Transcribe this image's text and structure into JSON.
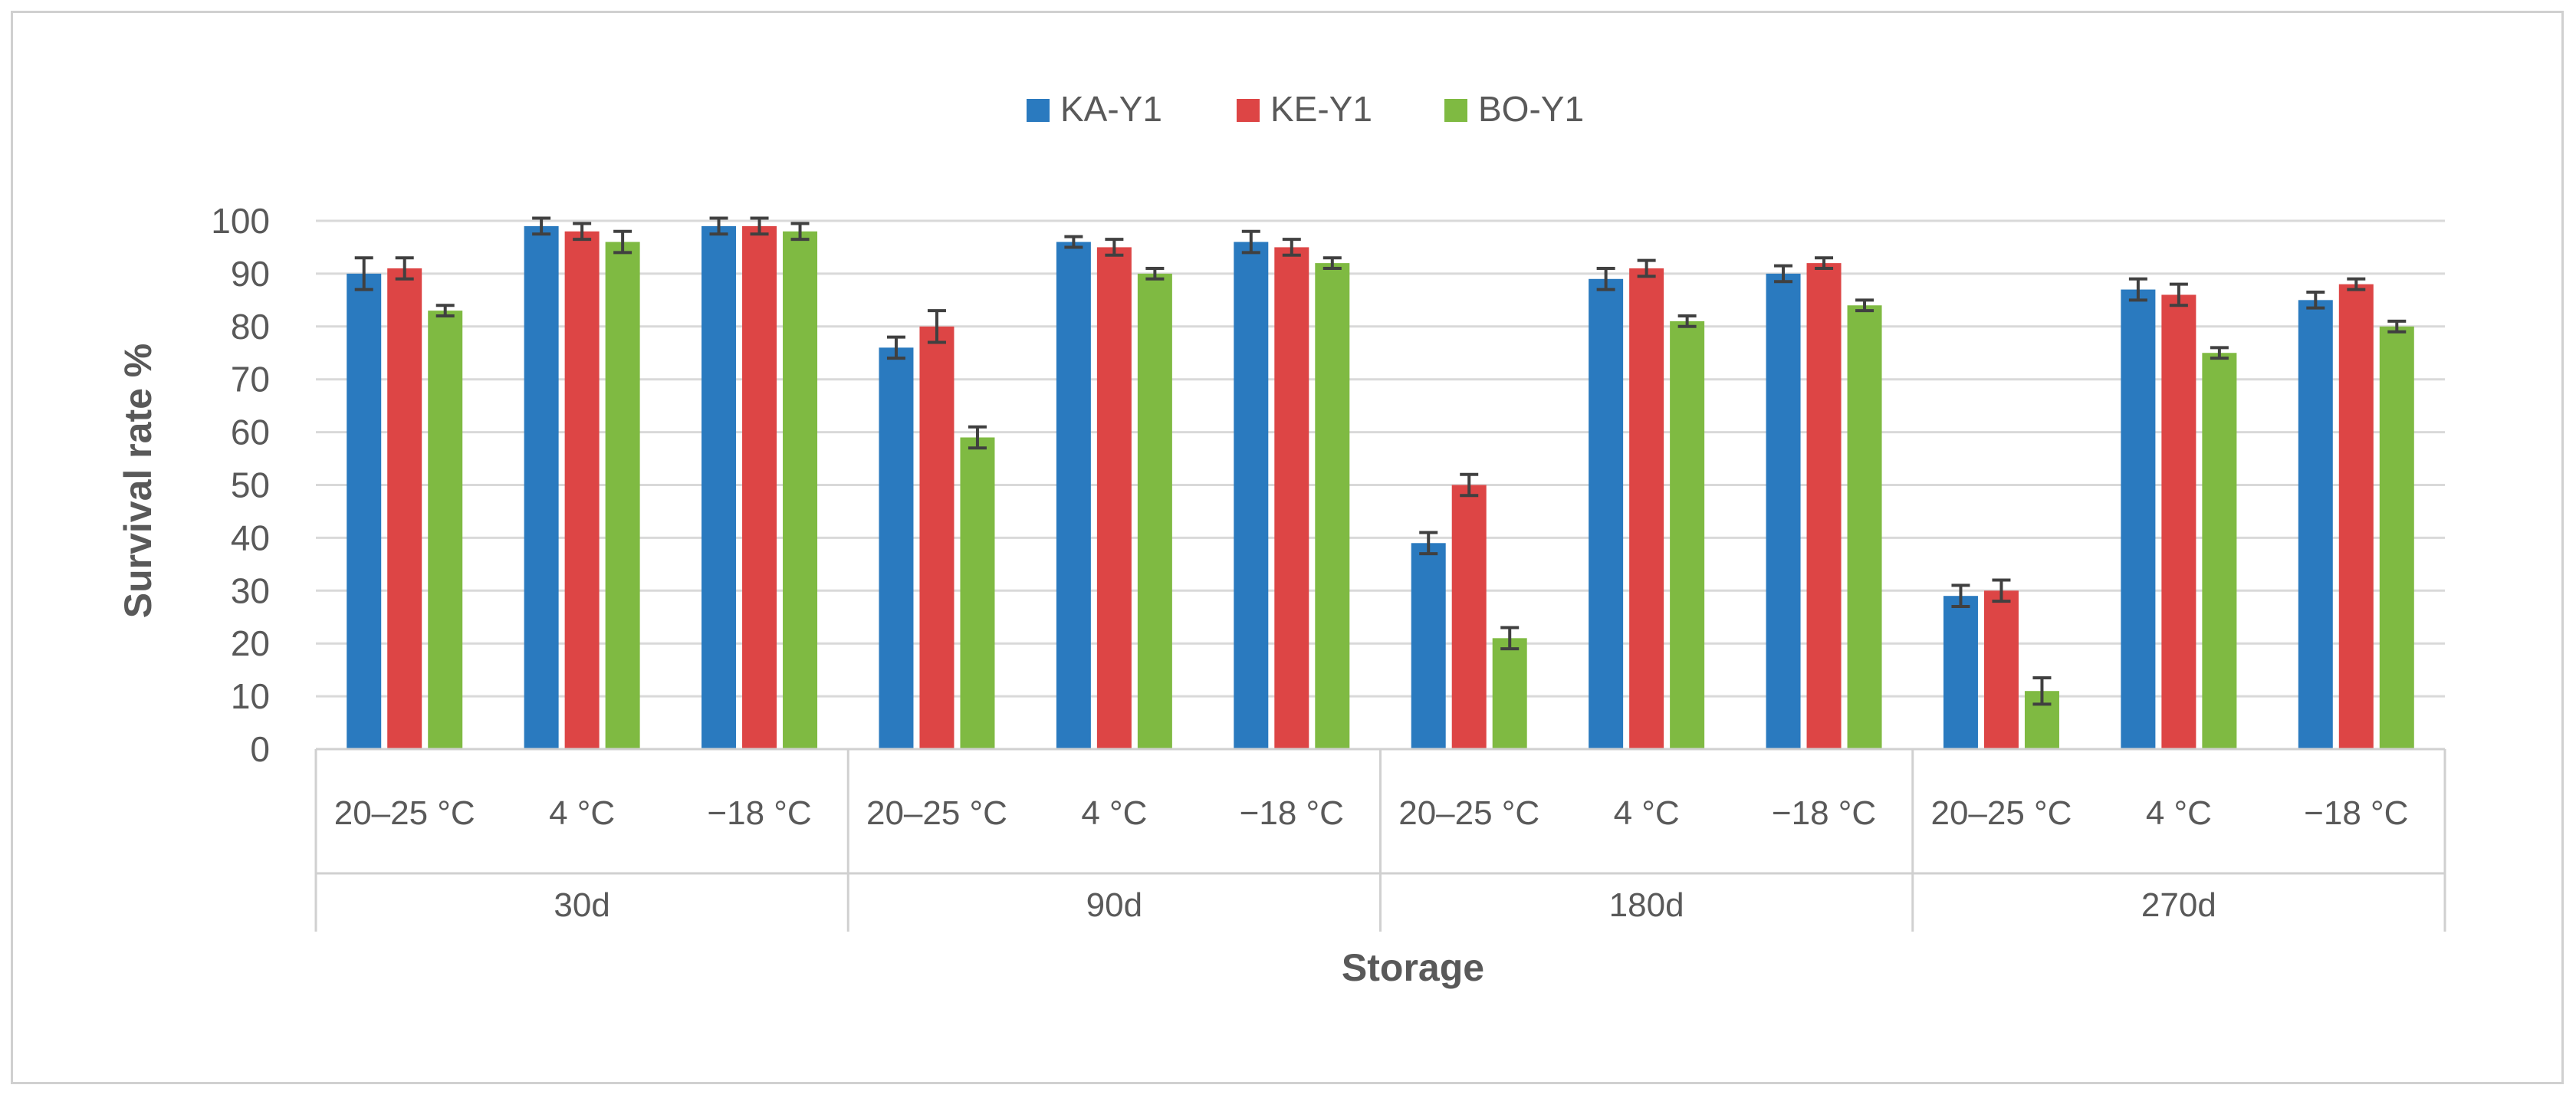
{
  "chart_data": {
    "type": "bar",
    "title": "",
    "xlabel": "Storage",
    "ylabel": "Survival rate %",
    "ylim": [
      0,
      100
    ],
    "yticks": [
      0,
      10,
      20,
      30,
      40,
      50,
      60,
      70,
      80,
      90,
      100
    ],
    "grid": true,
    "legend_position": "top-center",
    "groups": [
      {
        "label": "30d",
        "categories": [
          "20–25 °C",
          "4 °C",
          "−18 °C"
        ]
      },
      {
        "label": "90d",
        "categories": [
          "20–25 °C",
          "4 °C",
          "−18 °C"
        ]
      },
      {
        "label": "180d",
        "categories": [
          "20–25 °C",
          "4 °C",
          "−18 °C"
        ]
      },
      {
        "label": "270d",
        "categories": [
          "20–25 °C",
          "4 °C",
          "−18 °C"
        ]
      }
    ],
    "series": [
      {
        "name": "KA-Y1",
        "color": "#2a7abf",
        "values": [
          90,
          99,
          99,
          76,
          96,
          96,
          39,
          89,
          90,
          29,
          87,
          85
        ],
        "errors": [
          3,
          1.5,
          1.5,
          2,
          1,
          2,
          2,
          2,
          1.5,
          2,
          2,
          1.5
        ]
      },
      {
        "name": "KE-Y1",
        "color": "#dd4545",
        "values": [
          91,
          98,
          99,
          80,
          95,
          95,
          50,
          91,
          92,
          30,
          86,
          88
        ],
        "errors": [
          2,
          1.5,
          1.5,
          3,
          1.5,
          1.5,
          2,
          1.5,
          1,
          2,
          2,
          1
        ]
      },
      {
        "name": "BO-Y1",
        "color": "#7fba42",
        "values": [
          83,
          96,
          98,
          59,
          90,
          92,
          21,
          81,
          84,
          11,
          75,
          80
        ],
        "errors": [
          1,
          2,
          1.5,
          2,
          1,
          1,
          2,
          1,
          1,
          2.5,
          1,
          1
        ]
      }
    ]
  }
}
